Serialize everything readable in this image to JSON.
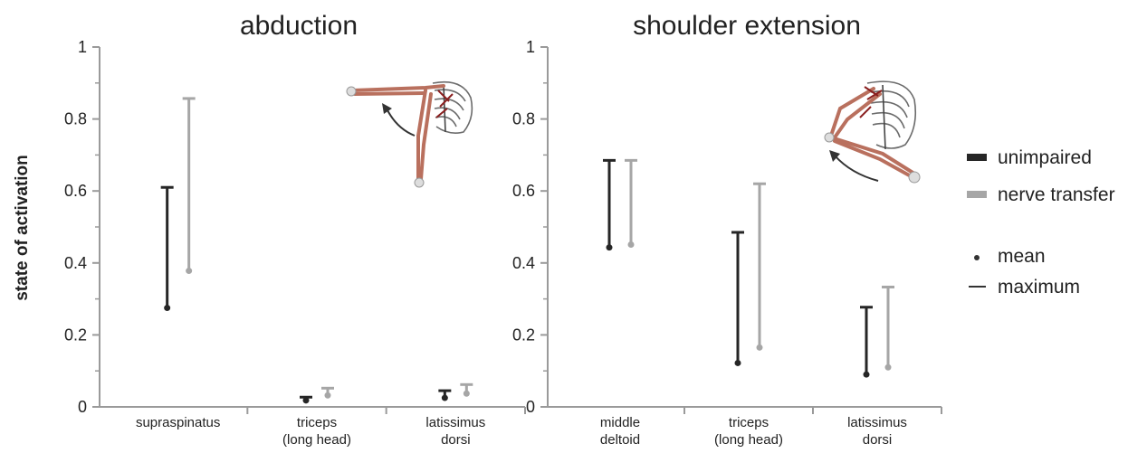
{
  "ylabel": "state of activation",
  "colors": {
    "unimpaired": "#262626",
    "nerve_transfer": "#a6a6a6",
    "axis": "#9a9a9a",
    "muscle": "#b9705e"
  },
  "legend": {
    "unimpaired": "unimpaired",
    "nerve_transfer": "nerve transfer",
    "mean": "mean",
    "maximum": "maximum"
  },
  "chart_data": [
    {
      "type": "range",
      "title": "abduction",
      "ylabel": "state of activation",
      "ylim": [
        0,
        1
      ],
      "yticks": [
        "0",
        "0.2",
        "0.4",
        "0.6",
        "0.8",
        "1"
      ],
      "categories": [
        [
          "supraspinatus"
        ],
        [
          "triceps",
          "(long head)"
        ],
        [
          "latissimus",
          "dorsi"
        ]
      ],
      "series": [
        {
          "name": "unimpaired",
          "mean": [
            0.275,
            0.018,
            0.025
          ],
          "maximum": [
            0.61,
            0.027,
            0.045
          ]
        },
        {
          "name": "nerve transfer",
          "mean": [
            0.378,
            0.032,
            0.037
          ],
          "maximum": [
            0.857,
            0.052,
            0.062
          ]
        }
      ]
    },
    {
      "type": "range",
      "title": "shoulder extension",
      "ylim": [
        0,
        1
      ],
      "yticks": [
        "0",
        "0.2",
        "0.4",
        "0.6",
        "0.8",
        "1"
      ],
      "categories": [
        [
          "middle",
          "deltoid"
        ],
        [
          "triceps",
          "(long head)"
        ],
        [
          "latissimus",
          "dorsi"
        ]
      ],
      "series": [
        {
          "name": "unimpaired",
          "mean": [
            0.443,
            0.122,
            0.09
          ],
          "maximum": [
            0.685,
            0.485,
            0.277
          ]
        },
        {
          "name": "nerve transfer",
          "mean": [
            0.451,
            0.165,
            0.11
          ],
          "maximum": [
            0.685,
            0.62,
            0.333
          ]
        }
      ]
    }
  ]
}
